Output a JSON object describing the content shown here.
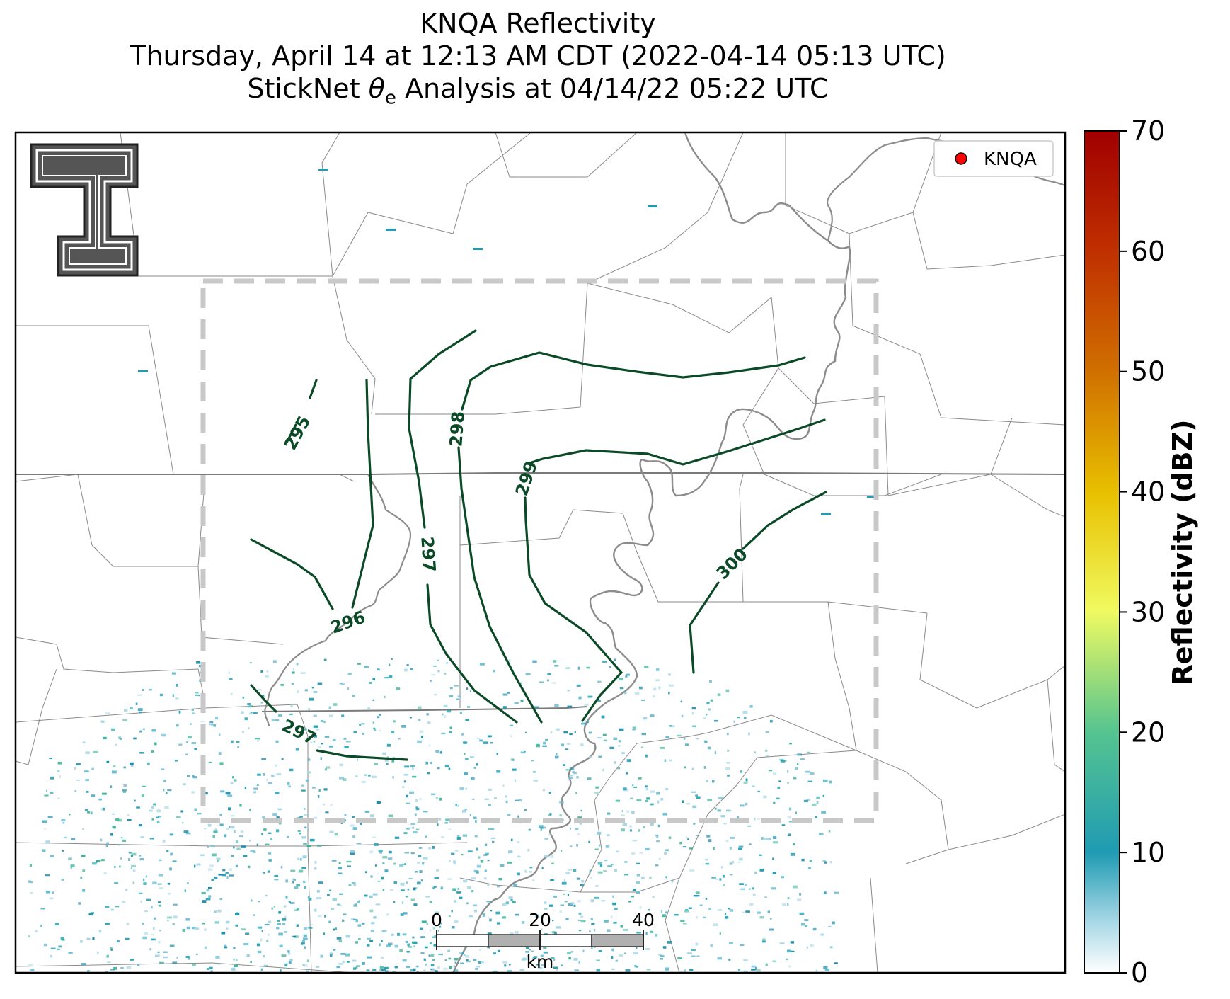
{
  "title": {
    "line1": "KNQA Reflectivity",
    "line2": "Thursday, April 14 at 12:13 AM CDT (2022-04-14 05:13 UTC)",
    "line3_prefix": "StickNet ",
    "line3_theta": "θ",
    "line3_sub": "e",
    "line3_suffix": " Analysis at 04/14/22 05:22 UTC"
  },
  "legend": {
    "label": "KNQA",
    "marker_color": "#ff0000"
  },
  "scale_bar": {
    "ticks": [
      "0",
      "20",
      "40"
    ],
    "unit": "km"
  },
  "colorbar": {
    "label": "Reflectivity (dBZ)",
    "ticks": [
      "0",
      "10",
      "20",
      "30",
      "40",
      "50",
      "60",
      "70"
    ],
    "range": [
      0,
      70
    ],
    "colors": [
      "#ffffff",
      "#1f9bb3",
      "#50c49a",
      "#f0f550",
      "#e0a000",
      "#cc5500",
      "#a00000"
    ]
  },
  "contours": {
    "color": "#0b4a26",
    "labels": [
      "295",
      "296",
      "297",
      "297",
      "298",
      "299",
      "300"
    ]
  },
  "analysis_box": {
    "style": "dashed",
    "color": "#c8c8c8"
  },
  "logo": {
    "name": "texas-tech-double-t-logo"
  }
}
